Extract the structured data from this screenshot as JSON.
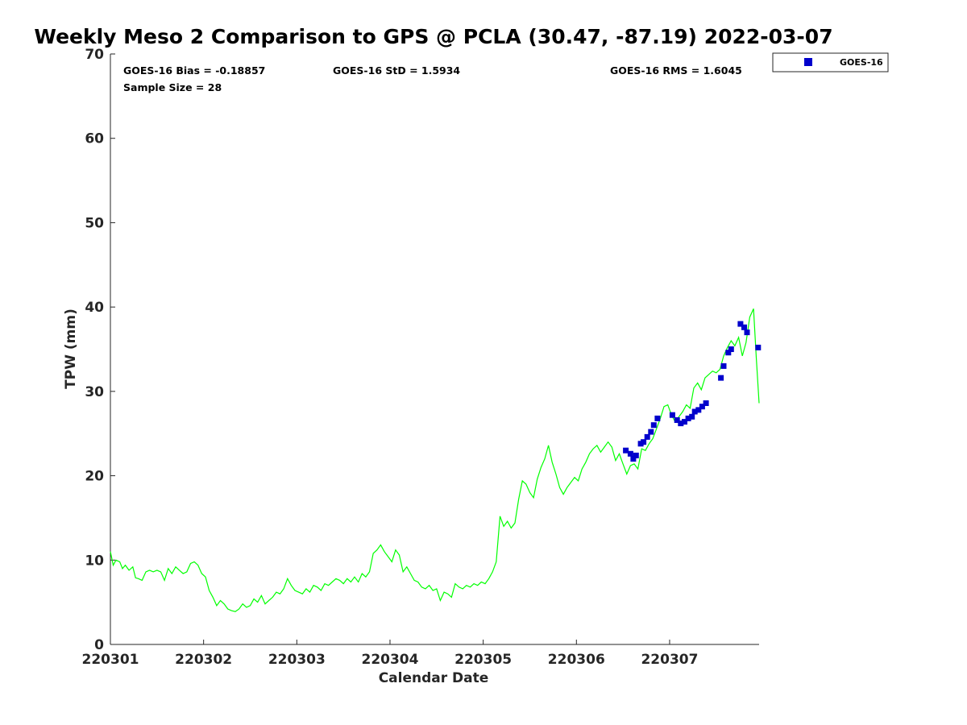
{
  "chart_data": {
    "type": "line",
    "title": "Weekly Meso 2 Comparison to GPS @ PCLA (30.47, -87.19) 2022-03-07",
    "xlabel": "Calendar Date",
    "ylabel": "TPW (mm)",
    "ylim": [
      0,
      70
    ],
    "xlim": [
      0,
      6.96
    ],
    "yticks": [
      0,
      10,
      20,
      30,
      40,
      50,
      60,
      70
    ],
    "xticks": [
      {
        "x": 0,
        "label": "220301"
      },
      {
        "x": 1,
        "label": "220302"
      },
      {
        "x": 2,
        "label": "220303"
      },
      {
        "x": 3,
        "label": "220304"
      },
      {
        "x": 4,
        "label": "220305"
      },
      {
        "x": 5,
        "label": "220306"
      },
      {
        "x": 6,
        "label": "220307"
      }
    ],
    "stats": {
      "bias": "GOES-16 Bias = -0.18857",
      "std": "GOES-16 StD = 1.5934",
      "rms": "GOES-16 RMS = 1.6045",
      "sample": "Sample Size = 28"
    },
    "legend": {
      "position": "top-right-outside",
      "entries": [
        "GOES-16"
      ]
    },
    "colors": {
      "gps": "#00ff00",
      "goes": "#0000cc"
    },
    "series": [
      {
        "type": "line",
        "points": [
          [
            0.0,
            11.0
          ],
          [
            0.03,
            9.4
          ],
          [
            0.06,
            10.0
          ],
          [
            0.1,
            9.8
          ],
          [
            0.13,
            9.0
          ],
          [
            0.16,
            9.4
          ],
          [
            0.2,
            8.8
          ],
          [
            0.24,
            9.2
          ],
          [
            0.27,
            7.9
          ],
          [
            0.3,
            7.8
          ],
          [
            0.34,
            7.6
          ],
          [
            0.38,
            8.6
          ],
          [
            0.42,
            8.8
          ],
          [
            0.46,
            8.6
          ],
          [
            0.5,
            8.8
          ],
          [
            0.54,
            8.6
          ],
          [
            0.58,
            7.6
          ],
          [
            0.62,
            9.0
          ],
          [
            0.66,
            8.4
          ],
          [
            0.7,
            9.2
          ],
          [
            0.74,
            8.8
          ],
          [
            0.78,
            8.4
          ],
          [
            0.82,
            8.6
          ],
          [
            0.86,
            9.6
          ],
          [
            0.9,
            9.8
          ],
          [
            0.94,
            9.4
          ],
          [
            0.98,
            8.4
          ],
          [
            1.02,
            8.0
          ],
          [
            1.06,
            6.4
          ],
          [
            1.1,
            5.6
          ],
          [
            1.14,
            4.6
          ],
          [
            1.18,
            5.2
          ],
          [
            1.22,
            4.8
          ],
          [
            1.26,
            4.2
          ],
          [
            1.3,
            4.0
          ],
          [
            1.34,
            3.9
          ],
          [
            1.38,
            4.2
          ],
          [
            1.42,
            4.8
          ],
          [
            1.46,
            4.4
          ],
          [
            1.5,
            4.6
          ],
          [
            1.54,
            5.4
          ],
          [
            1.58,
            5.0
          ],
          [
            1.62,
            5.8
          ],
          [
            1.66,
            4.8
          ],
          [
            1.7,
            5.2
          ],
          [
            1.74,
            5.6
          ],
          [
            1.78,
            6.2
          ],
          [
            1.82,
            6.0
          ],
          [
            1.86,
            6.6
          ],
          [
            1.9,
            7.8
          ],
          [
            1.94,
            7.0
          ],
          [
            1.98,
            6.4
          ],
          [
            2.02,
            6.2
          ],
          [
            2.06,
            6.0
          ],
          [
            2.1,
            6.6
          ],
          [
            2.14,
            6.2
          ],
          [
            2.18,
            7.0
          ],
          [
            2.22,
            6.8
          ],
          [
            2.26,
            6.4
          ],
          [
            2.3,
            7.2
          ],
          [
            2.34,
            7.0
          ],
          [
            2.38,
            7.4
          ],
          [
            2.42,
            7.8
          ],
          [
            2.46,
            7.6
          ],
          [
            2.5,
            7.2
          ],
          [
            2.54,
            7.8
          ],
          [
            2.58,
            7.4
          ],
          [
            2.62,
            8.0
          ],
          [
            2.66,
            7.4
          ],
          [
            2.7,
            8.4
          ],
          [
            2.74,
            8.0
          ],
          [
            2.78,
            8.6
          ],
          [
            2.82,
            10.8
          ],
          [
            2.86,
            11.2
          ],
          [
            2.9,
            11.8
          ],
          [
            2.94,
            11.0
          ],
          [
            2.98,
            10.4
          ],
          [
            3.02,
            9.8
          ],
          [
            3.06,
            11.2
          ],
          [
            3.1,
            10.6
          ],
          [
            3.14,
            8.6
          ],
          [
            3.18,
            9.2
          ],
          [
            3.22,
            8.4
          ],
          [
            3.26,
            7.6
          ],
          [
            3.3,
            7.4
          ],
          [
            3.34,
            6.8
          ],
          [
            3.38,
            6.6
          ],
          [
            3.42,
            7.0
          ],
          [
            3.46,
            6.4
          ],
          [
            3.5,
            6.6
          ],
          [
            3.54,
            5.2
          ],
          [
            3.58,
            6.2
          ],
          [
            3.62,
            6.0
          ],
          [
            3.66,
            5.6
          ],
          [
            3.7,
            7.2
          ],
          [
            3.74,
            6.8
          ],
          [
            3.78,
            6.6
          ],
          [
            3.82,
            7.0
          ],
          [
            3.86,
            6.8
          ],
          [
            3.9,
            7.2
          ],
          [
            3.94,
            7.0
          ],
          [
            3.98,
            7.4
          ],
          [
            4.02,
            7.2
          ],
          [
            4.06,
            7.8
          ],
          [
            4.1,
            8.6
          ],
          [
            4.14,
            9.8
          ],
          [
            4.18,
            15.2
          ],
          [
            4.22,
            14.0
          ],
          [
            4.26,
            14.6
          ],
          [
            4.3,
            13.8
          ],
          [
            4.34,
            14.4
          ],
          [
            4.38,
            17.2
          ],
          [
            4.42,
            19.4
          ],
          [
            4.46,
            19.0
          ],
          [
            4.5,
            18.0
          ],
          [
            4.54,
            17.4
          ],
          [
            4.58,
            19.6
          ],
          [
            4.62,
            21.0
          ],
          [
            4.66,
            22.0
          ],
          [
            4.7,
            23.6
          ],
          [
            4.74,
            21.6
          ],
          [
            4.78,
            20.2
          ],
          [
            4.82,
            18.6
          ],
          [
            4.86,
            17.8
          ],
          [
            4.9,
            18.6
          ],
          [
            4.94,
            19.2
          ],
          [
            4.98,
            19.8
          ],
          [
            5.02,
            19.4
          ],
          [
            5.06,
            20.8
          ],
          [
            5.1,
            21.6
          ],
          [
            5.14,
            22.6
          ],
          [
            5.18,
            23.2
          ],
          [
            5.22,
            23.6
          ],
          [
            5.26,
            22.8
          ],
          [
            5.3,
            23.4
          ],
          [
            5.34,
            24.0
          ],
          [
            5.38,
            23.4
          ],
          [
            5.42,
            21.8
          ],
          [
            5.46,
            22.6
          ],
          [
            5.5,
            21.4
          ],
          [
            5.54,
            20.2
          ],
          [
            5.58,
            21.2
          ],
          [
            5.62,
            21.4
          ],
          [
            5.66,
            20.8
          ],
          [
            5.7,
            23.2
          ],
          [
            5.74,
            23.0
          ],
          [
            5.78,
            23.8
          ],
          [
            5.82,
            24.4
          ],
          [
            5.86,
            25.6
          ],
          [
            5.9,
            26.8
          ],
          [
            5.94,
            28.2
          ],
          [
            5.98,
            28.4
          ],
          [
            6.02,
            27.2
          ],
          [
            6.06,
            26.4
          ],
          [
            6.1,
            27.0
          ],
          [
            6.14,
            27.6
          ],
          [
            6.18,
            28.4
          ],
          [
            6.22,
            28.0
          ],
          [
            6.26,
            30.4
          ],
          [
            6.3,
            31.0
          ],
          [
            6.34,
            30.2
          ],
          [
            6.38,
            31.6
          ],
          [
            6.42,
            32.0
          ],
          [
            6.46,
            32.4
          ],
          [
            6.5,
            32.2
          ],
          [
            6.54,
            32.6
          ],
          [
            6.58,
            34.2
          ],
          [
            6.62,
            35.2
          ],
          [
            6.66,
            36.0
          ],
          [
            6.7,
            35.4
          ],
          [
            6.74,
            36.4
          ],
          [
            6.78,
            34.2
          ],
          [
            6.82,
            35.8
          ],
          [
            6.86,
            38.8
          ],
          [
            6.9,
            39.8
          ],
          [
            6.93,
            34.0
          ],
          [
            6.96,
            28.6
          ]
        ]
      },
      {
        "name": "GOES-16",
        "type": "scatter",
        "points": [
          [
            5.53,
            23.0
          ],
          [
            5.58,
            22.6
          ],
          [
            5.61,
            22.0
          ],
          [
            5.64,
            22.4
          ],
          [
            5.69,
            23.8
          ],
          [
            5.72,
            24.0
          ],
          [
            5.76,
            24.6
          ],
          [
            5.8,
            25.2
          ],
          [
            5.83,
            26.0
          ],
          [
            5.87,
            26.8
          ],
          [
            6.03,
            27.2
          ],
          [
            6.08,
            26.6
          ],
          [
            6.12,
            26.2
          ],
          [
            6.16,
            26.4
          ],
          [
            6.2,
            26.8
          ],
          [
            6.24,
            27.0
          ],
          [
            6.27,
            27.6
          ],
          [
            6.31,
            27.8
          ],
          [
            6.35,
            28.2
          ],
          [
            6.39,
            28.6
          ],
          [
            6.55,
            31.6
          ],
          [
            6.58,
            33.0
          ],
          [
            6.63,
            34.6
          ],
          [
            6.66,
            35.0
          ],
          [
            6.76,
            38.0
          ],
          [
            6.8,
            37.6
          ],
          [
            6.83,
            37.0
          ],
          [
            6.95,
            35.2
          ]
        ]
      }
    ]
  }
}
